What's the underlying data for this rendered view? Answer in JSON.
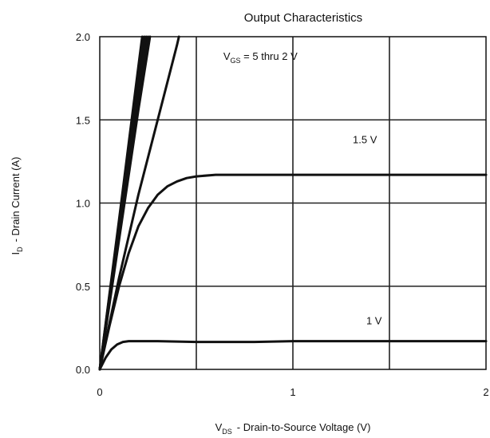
{
  "chart_data": {
    "type": "line",
    "title": "Output Characteristics",
    "xlabel": {
      "prefix": "V",
      "sub": "DS",
      "text": "-  Drain-to-Source Voltage (V)"
    },
    "ylabel": {
      "prefix": "I",
      "sub": "D",
      "text": "-  Drain Current (A)"
    },
    "xlim": [
      0,
      2
    ],
    "ylim": [
      0,
      2
    ],
    "x_ticks": [
      "0",
      "1",
      "2"
    ],
    "x_tick_values": [
      0,
      1,
      2
    ],
    "y_ticks": [
      "0.0",
      "0.5",
      "1.0",
      "1.5",
      "2.0"
    ],
    "y_tick_values": [
      0,
      0.5,
      1.0,
      1.5,
      2.0
    ],
    "grid": true,
    "grid_x": [
      0.5,
      1,
      1.5
    ],
    "grid_y": [
      0.5,
      1.0,
      1.5
    ],
    "annotations": [
      {
        "prefix": "V",
        "sub": "GS",
        "text": " = 5 thru 2 V",
        "x": 0.64,
        "y": 1.86
      },
      {
        "text": "1.5 V",
        "x": 1.31,
        "y": 1.36
      },
      {
        "text": "1 V",
        "x": 1.38,
        "y": 0.27
      }
    ],
    "series": [
      {
        "x": [
          0,
          0.05,
          0.1,
          0.15,
          0.2,
          0.22
        ],
        "y": [
          0,
          0.45,
          0.9,
          1.36,
          1.82,
          2.0
        ]
      },
      {
        "x": [
          0,
          0.05,
          0.1,
          0.15,
          0.2,
          0.23
        ],
        "y": [
          0,
          0.44,
          0.88,
          1.32,
          1.76,
          2.0
        ]
      },
      {
        "x": [
          0,
          0.05,
          0.1,
          0.15,
          0.2,
          0.24
        ],
        "y": [
          0,
          0.42,
          0.85,
          1.27,
          1.69,
          2.0
        ]
      },
      {
        "x": [
          0,
          0.05,
          0.1,
          0.15,
          0.2,
          0.25
        ],
        "y": [
          0,
          0.4,
          0.8,
          1.2,
          1.6,
          2.0
        ]
      },
      {
        "x": [
          0,
          0.05,
          0.1,
          0.15,
          0.2,
          0.26
        ],
        "y": [
          0,
          0.39,
          0.78,
          1.17,
          1.56,
          2.0
        ]
      },
      {
        "x": [
          0,
          0.1,
          0.2,
          0.3,
          0.4,
          0.41
        ],
        "y": [
          0,
          0.55,
          1.05,
          1.5,
          1.95,
          2.0
        ]
      },
      {
        "x": [
          0,
          0.05,
          0.1,
          0.15,
          0.2,
          0.25,
          0.3,
          0.35,
          0.4,
          0.45,
          0.5,
          0.6,
          0.8,
          1.0,
          1.2,
          1.5,
          1.8,
          2.0
        ],
        "y": [
          0,
          0.26,
          0.5,
          0.7,
          0.86,
          0.97,
          1.05,
          1.1,
          1.13,
          1.15,
          1.16,
          1.17,
          1.17,
          1.17,
          1.17,
          1.17,
          1.17,
          1.17
        ]
      },
      {
        "x": [
          0,
          0.03,
          0.06,
          0.09,
          0.12,
          0.15,
          0.2,
          0.3,
          0.5,
          0.8,
          1.0,
          1.2,
          1.5,
          1.8,
          2.0
        ],
        "y": [
          0,
          0.07,
          0.12,
          0.15,
          0.165,
          0.17,
          0.17,
          0.17,
          0.165,
          0.165,
          0.17,
          0.17,
          0.17,
          0.17,
          0.17
        ]
      }
    ]
  }
}
